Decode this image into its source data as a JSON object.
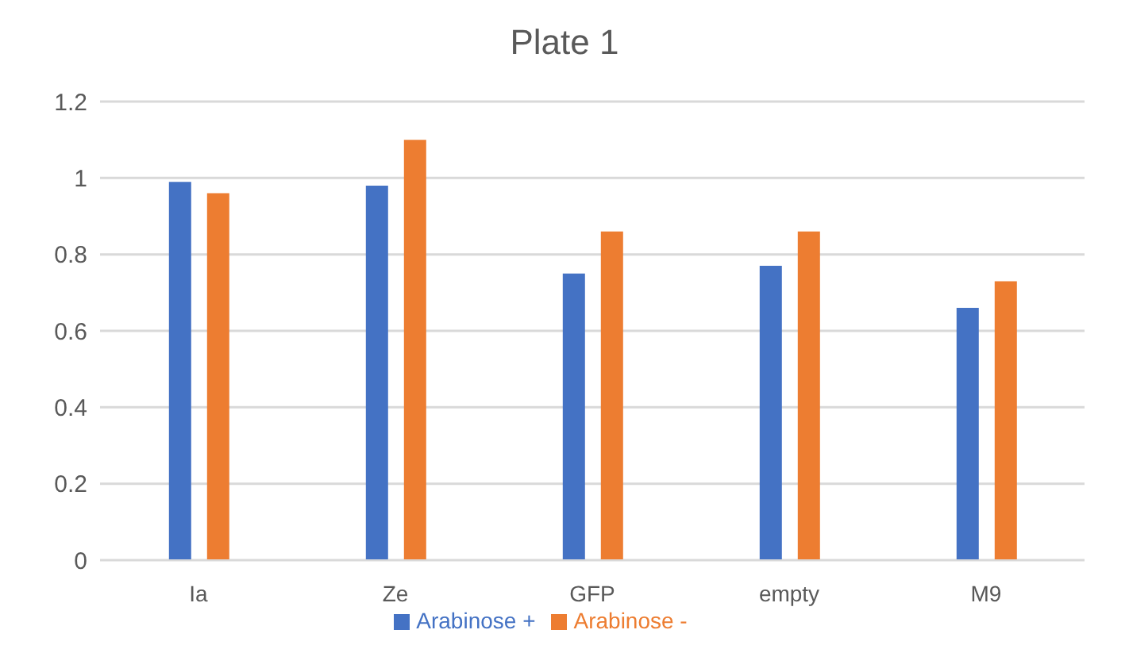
{
  "chart_data": {
    "type": "bar",
    "title": "Plate 1",
    "categories": [
      "Ia",
      "Ze",
      "GFP",
      "empty",
      "M9"
    ],
    "series": [
      {
        "name": "Arabinose +",
        "color": "#4472c4",
        "values": [
          0.99,
          0.98,
          0.75,
          0.77,
          0.66
        ]
      },
      {
        "name": "Arabinose -",
        "color": "#ed7d31",
        "values": [
          0.96,
          1.1,
          0.86,
          0.86,
          0.73
        ]
      }
    ],
    "ylim": [
      0,
      1.2
    ],
    "yticks": [
      0,
      0.2,
      0.4,
      0.6,
      0.8,
      1,
      1.2
    ],
    "grid": "y",
    "legend": "bottom"
  }
}
